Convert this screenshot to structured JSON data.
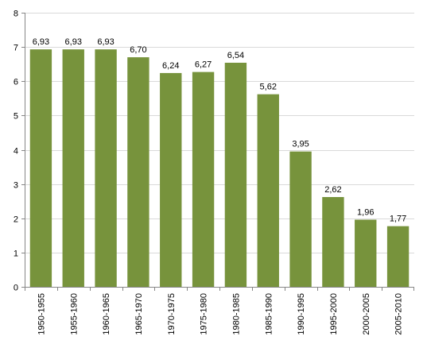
{
  "chart_data": {
    "type": "bar",
    "categories": [
      "1950-1955",
      "1955-1960",
      "1960-1965",
      "1965-1970",
      "1970-1975",
      "1975-1980",
      "1980-1985",
      "1985-1990",
      "1990-1995",
      "1995-2000",
      "2000-2005",
      "2005-2010"
    ],
    "values": [
      6.93,
      6.93,
      6.93,
      6.7,
      6.24,
      6.27,
      6.54,
      5.62,
      3.95,
      2.62,
      1.96,
      1.77
    ],
    "data_labels": [
      "6,93",
      "6,93",
      "6,93",
      "6,70",
      "6,24",
      "6,27",
      "6,54",
      "5,62",
      "3,95",
      "2,62",
      "1,96",
      "1,77"
    ],
    "y_ticks": [
      0,
      1,
      2,
      3,
      4,
      5,
      6,
      7,
      8
    ],
    "ylim": [
      0,
      8
    ],
    "grid": true,
    "legend": "none",
    "colors": {
      "bar": "#77933C",
      "grid": "#D9D9D9",
      "axis": "#868686"
    }
  }
}
